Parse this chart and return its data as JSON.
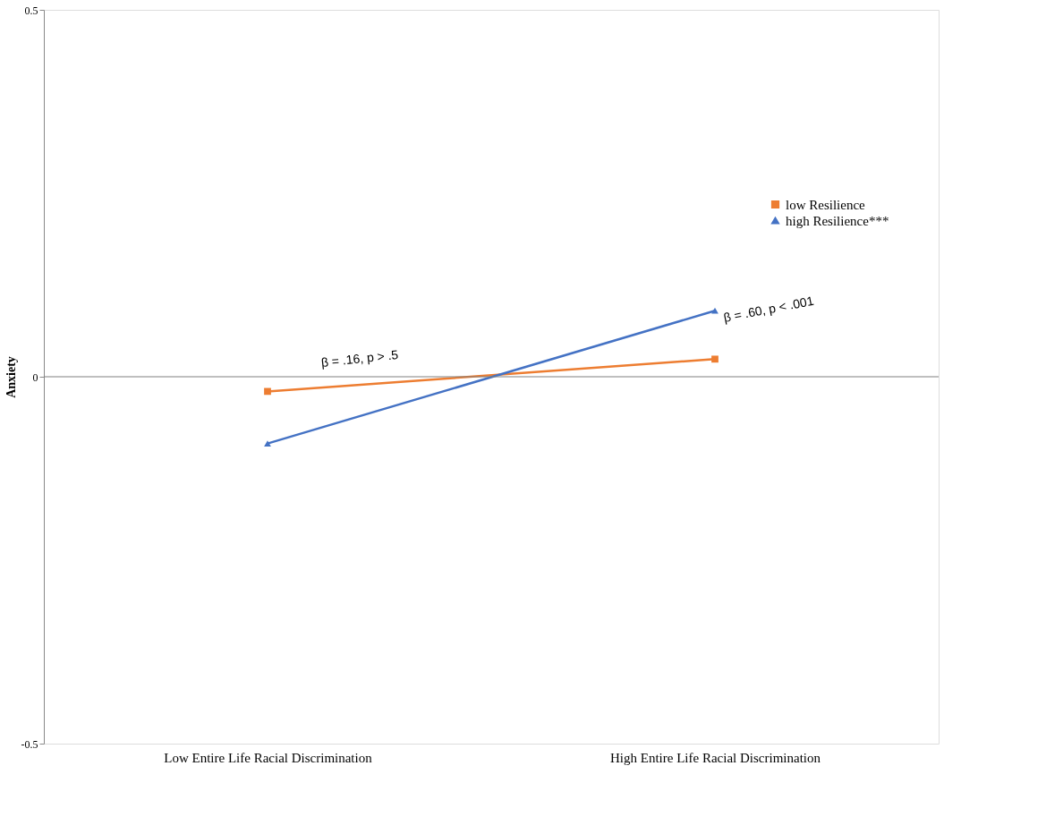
{
  "chart_data": {
    "type": "line",
    "ylabel": "Anxiety",
    "categories": [
      "Low Entire Life Racial Discrimination",
      "High Entire Life Racial Discrimination"
    ],
    "series": [
      {
        "name": "low Resilience",
        "color": "#ed7d31",
        "marker": "square",
        "values": [
          -0.02,
          0.024
        ]
      },
      {
        "name": "high Resilience***",
        "color": "#4472c4",
        "marker": "triangle",
        "values": [
          -0.091,
          0.09
        ]
      }
    ],
    "ylim": [
      -0.5,
      0.5
    ],
    "yticks": [
      -0.5,
      0,
      0.5
    ],
    "ref_lines": [
      {
        "axis": "y",
        "value": 0,
        "color": "#7f7f7f"
      }
    ],
    "annotations": [
      "β =  .16, p > .5",
      "β =  .60, p <  .001"
    ],
    "legend": "top right",
    "grid": false,
    "line_style": "solid"
  }
}
